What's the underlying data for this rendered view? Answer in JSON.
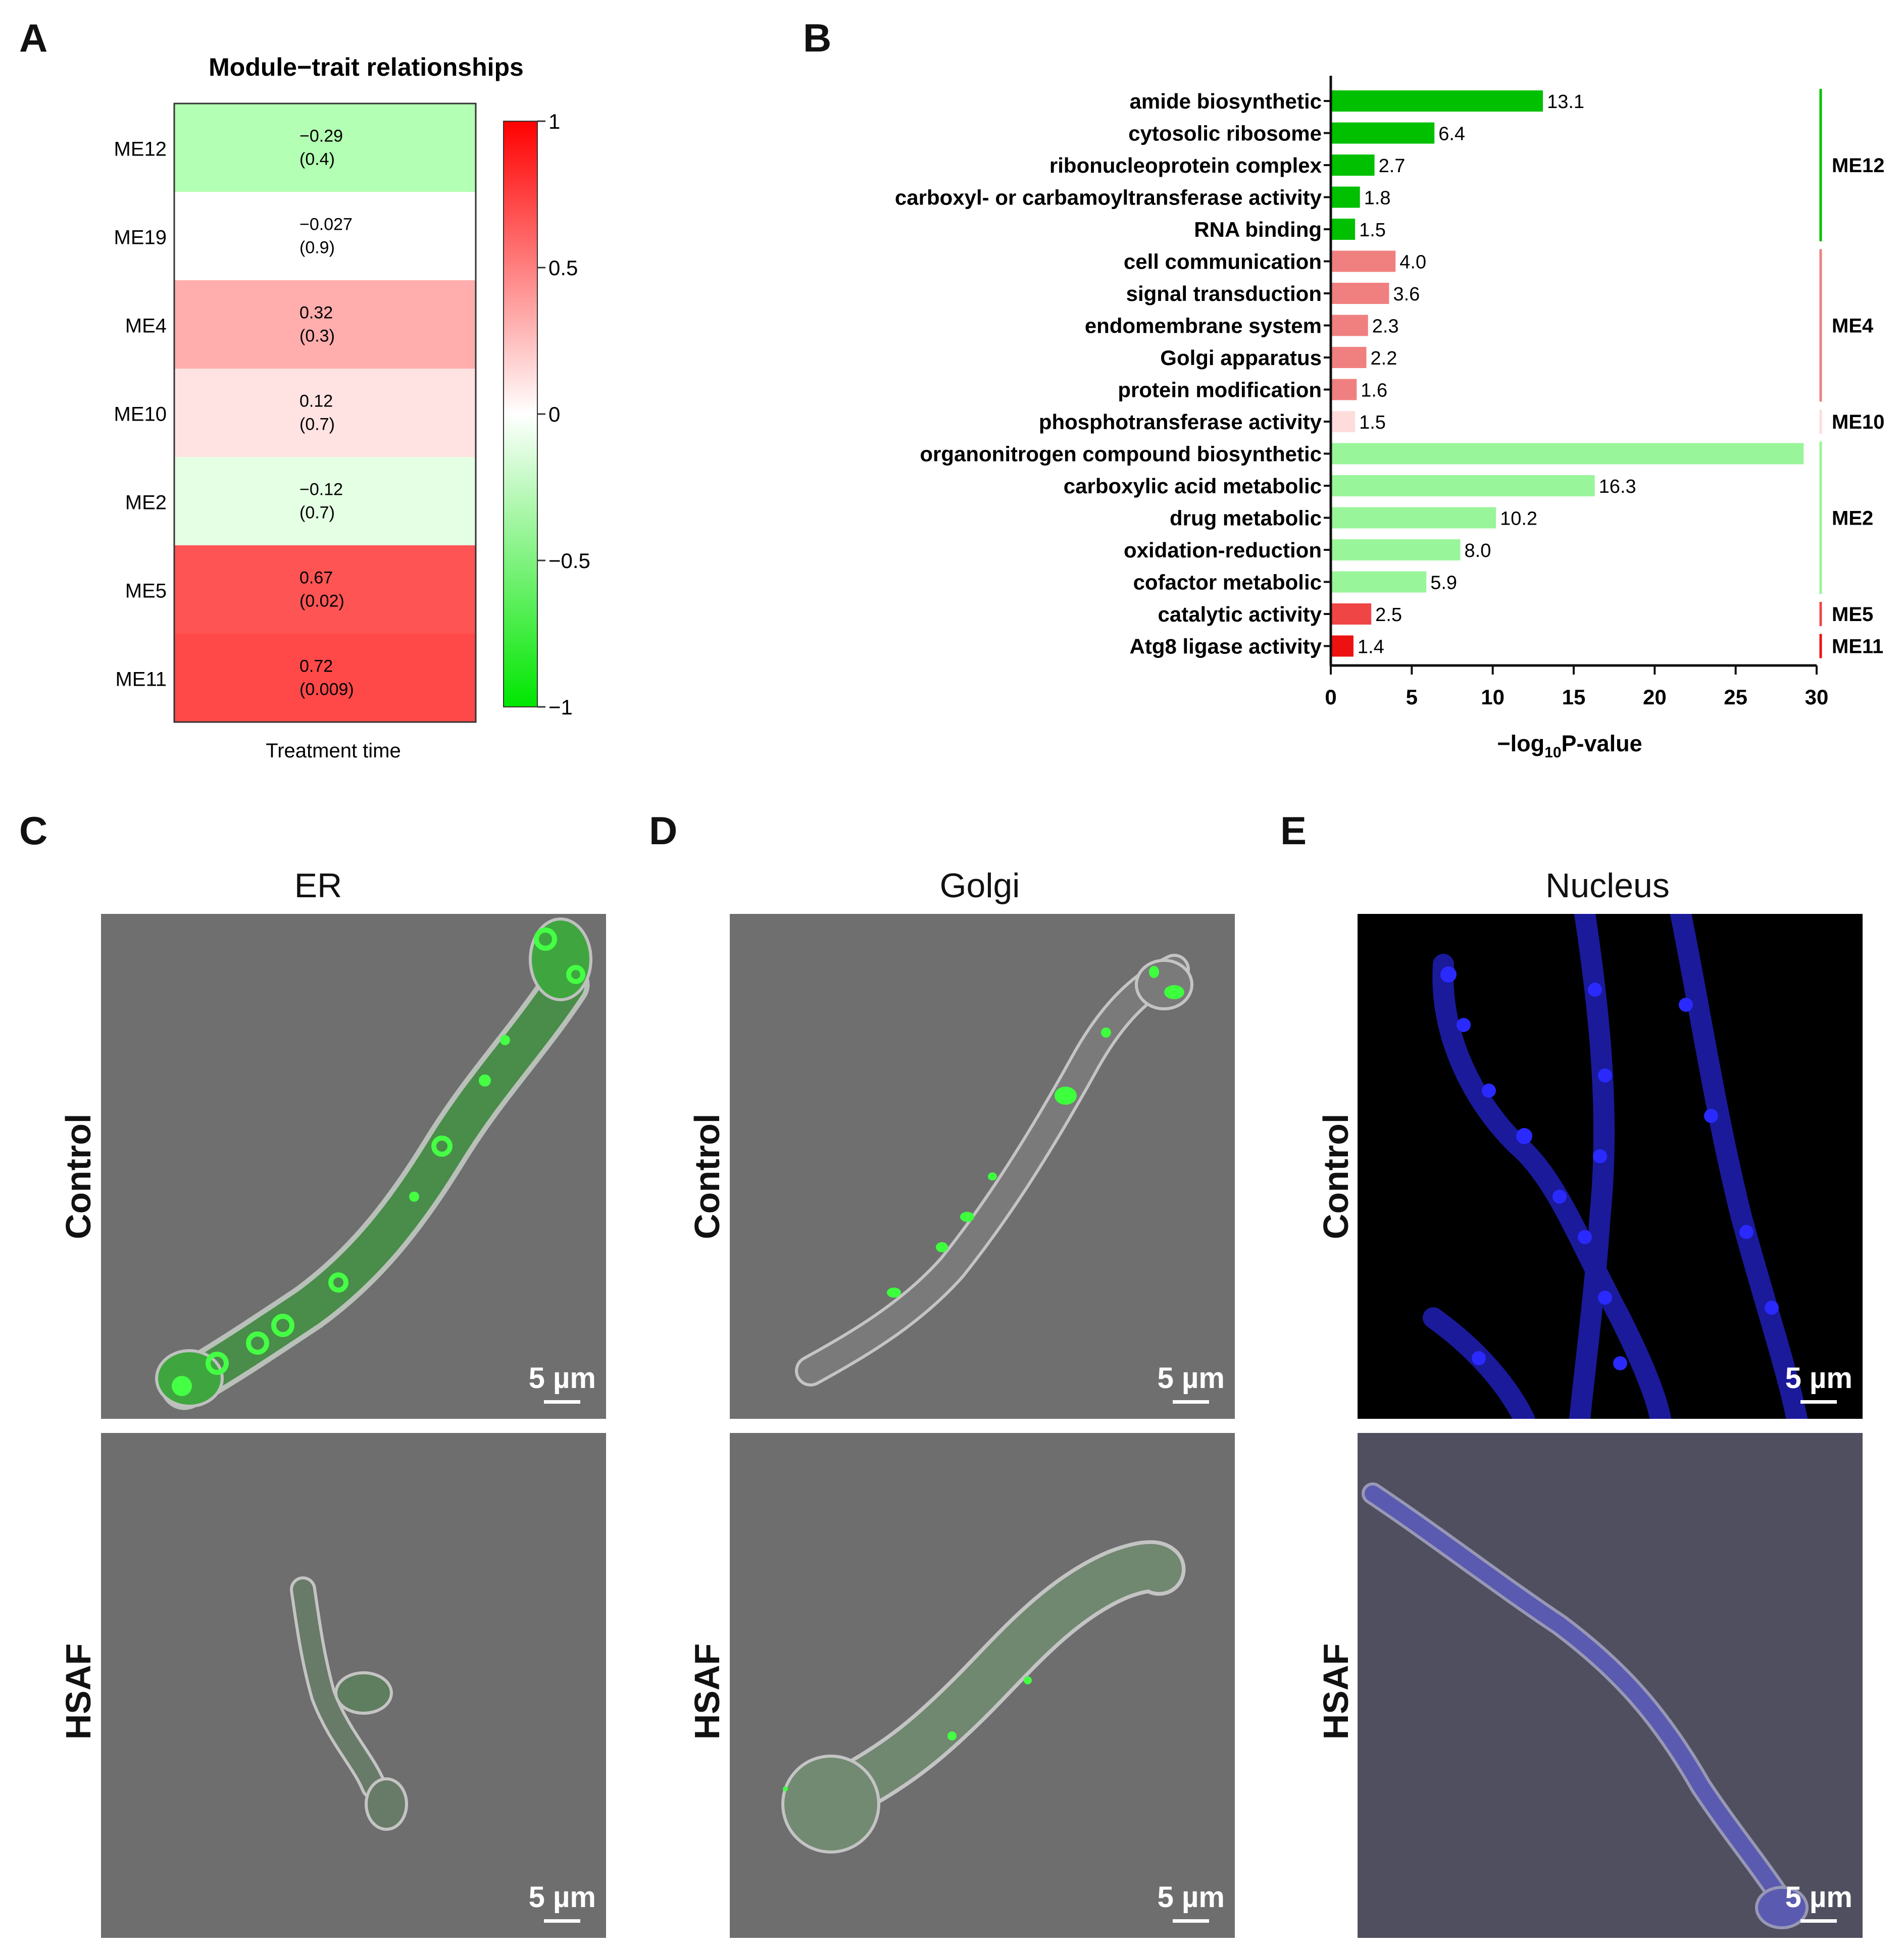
{
  "panels": {
    "A": {
      "letter": "A",
      "chart_data": {
        "type": "heatmap",
        "title": "Module−trait relationships",
        "xlabel": "Treatment time",
        "rows": [
          {
            "module": "ME12",
            "corr": -0.29,
            "corr_label": "−0.29",
            "p_label": "(0.4)",
            "color": "#b3ffb3"
          },
          {
            "module": "ME19",
            "corr": -0.027,
            "corr_label": "−0.027",
            "p_label": "(0.9)",
            "color": "#ffffff"
          },
          {
            "module": "ME4",
            "corr": 0.32,
            "corr_label": "0.32",
            "p_label": "(0.3)",
            "color": "#ffadad"
          },
          {
            "module": "ME10",
            "corr": 0.12,
            "corr_label": "0.12",
            "p_label": "(0.7)",
            "color": "#ffe2e2"
          },
          {
            "module": "ME2",
            "corr": -0.12,
            "corr_label": "−0.12",
            "p_label": "(0.7)",
            "color": "#e4ffe4"
          },
          {
            "module": "ME5",
            "corr": 0.67,
            "corr_label": "0.67",
            "p_label": "(0.02)",
            "color": "#ff5454"
          },
          {
            "module": "ME11",
            "corr": 0.72,
            "corr_label": "0.72",
            "p_label": "(0.009)",
            "color": "#ff4949"
          }
        ],
        "colorbar": {
          "range": [
            -1,
            1
          ],
          "ticks": [
            "1",
            "0.5",
            "0",
            "−0.5",
            "−1"
          ],
          "tick_values": [
            1,
            0.5,
            0,
            -0.5,
            -1
          ],
          "low_color": "#00e600",
          "mid_color": "#ffffff",
          "high_color": "#ff0000"
        }
      }
    },
    "B": {
      "letter": "B",
      "chart_data": {
        "type": "bar",
        "orientation": "horizontal",
        "xlabel_prefix": "−log",
        "xlabel_sub": "10",
        "xlabel_suffix": "P-value",
        "xlim": [
          0,
          30
        ],
        "xticks": [
          0,
          5,
          10,
          15,
          20,
          25,
          30
        ],
        "bars": [
          {
            "term": "amide biosynthetic",
            "value": 13.1,
            "label": "13.1",
            "module": "ME12"
          },
          {
            "term": "cytosolic ribosome",
            "value": 6.4,
            "label": "6.4",
            "module": "ME12"
          },
          {
            "term": "ribonucleoprotein complex",
            "value": 2.7,
            "label": "2.7",
            "module": "ME12"
          },
          {
            "term": "carboxyl- or carbamoyltransferase activity",
            "value": 1.8,
            "label": "1.8",
            "module": "ME12"
          },
          {
            "term": "RNA binding",
            "value": 1.5,
            "label": "1.5",
            "module": "ME12"
          },
          {
            "term": "cell communication",
            "value": 4.0,
            "label": "4.0",
            "module": "ME4"
          },
          {
            "term": "signal transduction",
            "value": 3.6,
            "label": "3.6",
            "module": "ME4"
          },
          {
            "term": "endomembrane system",
            "value": 2.3,
            "label": "2.3",
            "module": "ME4"
          },
          {
            "term": "Golgi apparatus",
            "value": 2.2,
            "label": "2.2",
            "module": "ME4"
          },
          {
            "term": "protein modification",
            "value": 1.6,
            "label": "1.6",
            "module": "ME4"
          },
          {
            "term": "phosphotransferase activity",
            "value": 1.5,
            "label": "1.5",
            "module": "ME10"
          },
          {
            "term": "organonitrogen compound biosynthetic",
            "value": 29.2,
            "label": "",
            "module": "ME2"
          },
          {
            "term": "carboxylic acid metabolic",
            "value": 16.3,
            "label": "16.3",
            "module": "ME2"
          },
          {
            "term": "drug metabolic",
            "value": 10.2,
            "label": "10.2",
            "module": "ME2"
          },
          {
            "term": "oxidation-reduction",
            "value": 8.0,
            "label": "8.0",
            "module": "ME2"
          },
          {
            "term": "cofactor metabolic",
            "value": 5.9,
            "label": "5.9",
            "module": "ME2"
          },
          {
            "term": "catalytic activity",
            "value": 2.5,
            "label": "2.5",
            "module": "ME5"
          },
          {
            "term": "Atg8 ligase activity",
            "value": 1.4,
            "label": "1.4",
            "module": "ME11"
          }
        ],
        "modules": [
          {
            "name": "ME12",
            "color": "#00c000"
          },
          {
            "name": "ME4",
            "color": "#f08080"
          },
          {
            "name": "ME10",
            "color": "#ffdcdc"
          },
          {
            "name": "ME2",
            "color": "#99f599"
          },
          {
            "name": "ME5",
            "color": "#f04545"
          },
          {
            "name": "ME11",
            "color": "#ee1111"
          }
        ]
      }
    },
    "C": {
      "letter": "C",
      "title": "ER"
    },
    "D": {
      "letter": "D",
      "title": "Golgi"
    },
    "E": {
      "letter": "E",
      "title": "Nucleus"
    }
  },
  "rows": {
    "control": "Control",
    "hsaf": "HSAF"
  },
  "scale_bar": "5 µm",
  "colors": {
    "bf_gray": "#6e6e6e",
    "er_green": "#3dff3d",
    "nucleus_blue": "#2a2aff",
    "bg_black": "#000000"
  }
}
